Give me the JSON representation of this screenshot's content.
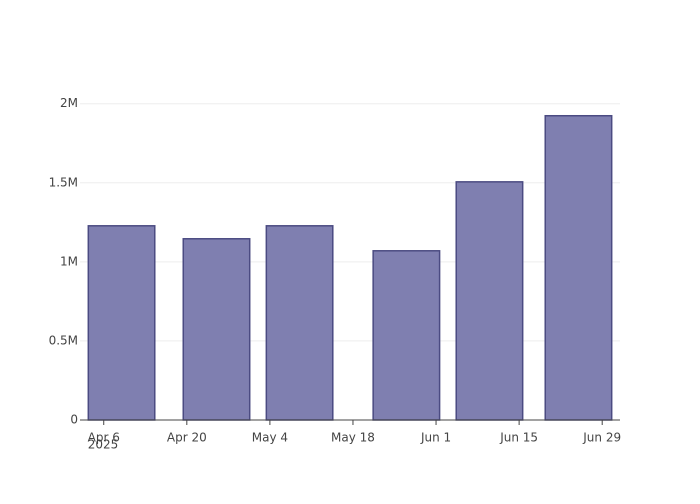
{
  "chart_data": {
    "type": "bar",
    "x": [
      "2025-04-09",
      "2025-04-25",
      "2025-05-09",
      "2025-05-27",
      "2025-06-10",
      "2025-06-25"
    ],
    "values": [
      1228000,
      1146000,
      1228000,
      1070000,
      1506000,
      1924000
    ],
    "color": "#7f7fb0",
    "edgecolor": "#4b4b82",
    "xlim": [
      "2025-04-02",
      "2025-07-02"
    ],
    "xticks": [
      {
        "value": "2025-04-06",
        "label": "Apr 6"
      },
      {
        "value": "2025-04-20",
        "label": "Apr 20"
      },
      {
        "value": "2025-05-04",
        "label": "May 4"
      },
      {
        "value": "2025-05-18",
        "label": "May 18"
      },
      {
        "value": "2025-06-01",
        "label": "Jun 1"
      },
      {
        "value": "2025-06-15",
        "label": "Jun 15"
      },
      {
        "value": "2025-06-29",
        "label": "Jun 29"
      }
    ],
    "x_year_label": "2025",
    "ylim": [
      0,
      2150000
    ],
    "yticks": [
      0,
      {
        "value": 500000,
        "label": "0.5M"
      },
      {
        "value": 1000000,
        "label": "1M"
      },
      {
        "value": 1500000,
        "label": "1.5M"
      },
      {
        "value": 2000000,
        "label": "2M"
      }
    ],
    "grid": true
  }
}
